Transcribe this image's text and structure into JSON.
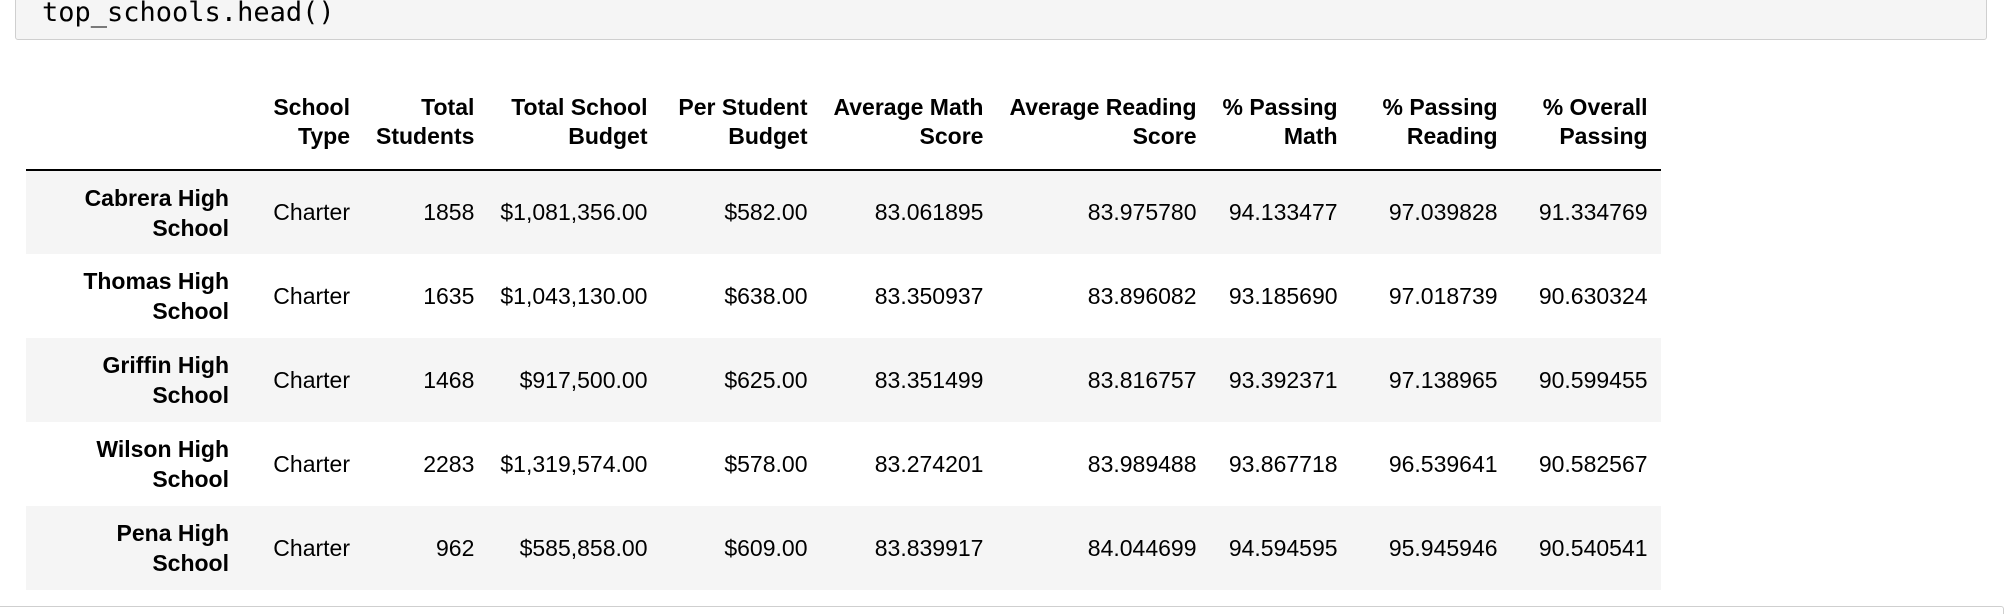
{
  "code_cell": {
    "code": "top_schools.head()"
  },
  "table": {
    "columns": [
      [
        "School",
        "Type"
      ],
      [
        "Total",
        "Students"
      ],
      [
        "Total School",
        "Budget"
      ],
      [
        "Per Student",
        "Budget"
      ],
      [
        "Average Math",
        "Score"
      ],
      [
        "Average Reading",
        "Score"
      ],
      [
        "% Passing",
        "Math"
      ],
      [
        "% Passing",
        "Reading"
      ],
      [
        "% Overall",
        "Passing"
      ]
    ],
    "rows": [
      {
        "index": [
          "Cabrera High",
          "School"
        ],
        "cells": [
          "Charter",
          "1858",
          "$1,081,356.00",
          "$582.00",
          "83.061895",
          "83.975780",
          "94.133477",
          "97.039828",
          "91.334769"
        ]
      },
      {
        "index": [
          "Thomas High",
          "School"
        ],
        "cells": [
          "Charter",
          "1635",
          "$1,043,130.00",
          "$638.00",
          "83.350937",
          "83.896082",
          "93.185690",
          "97.018739",
          "90.630324"
        ]
      },
      {
        "index": [
          "Griffin High",
          "School"
        ],
        "cells": [
          "Charter",
          "1468",
          "$917,500.00",
          "$625.00",
          "83.351499",
          "83.816757",
          "93.392371",
          "97.138965",
          "90.599455"
        ]
      },
      {
        "index": [
          "Wilson High",
          "School"
        ],
        "cells": [
          "Charter",
          "2283",
          "$1,319,574.00",
          "$578.00",
          "83.274201",
          "83.989488",
          "93.867718",
          "96.539641",
          "90.582567"
        ]
      },
      {
        "index": [
          "Pena High",
          "School"
        ],
        "cells": [
          "Charter",
          "962",
          "$585,858.00",
          "$609.00",
          "83.839917",
          "84.044699",
          "94.594595",
          "95.945946",
          "90.540541"
        ]
      }
    ]
  }
}
